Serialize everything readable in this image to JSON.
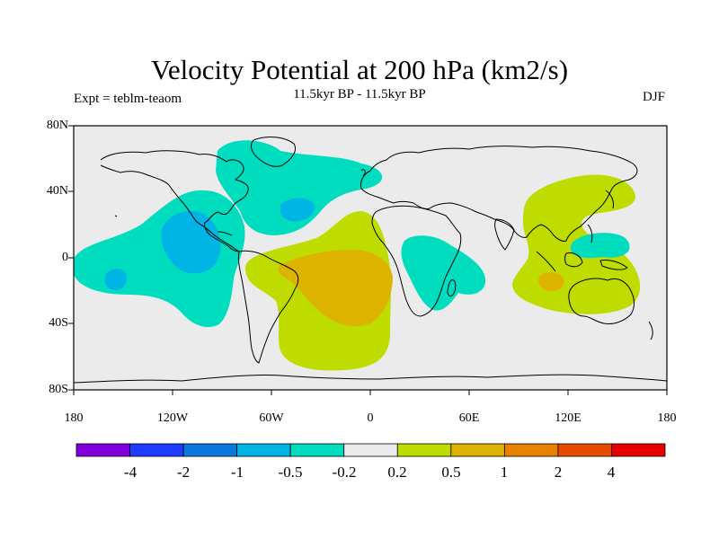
{
  "header": {
    "title": "Velocity Potential at 200 hPa (km2/s)",
    "subtitle": "11.5kyr BP - 11.5kyr BP",
    "left_label": "Expt = teblm-teaom",
    "right_label": "DJF"
  },
  "axes": {
    "y_ticks": [
      "80N",
      "40N",
      "0",
      "40S",
      "80S"
    ],
    "x_ticks": [
      "180",
      "120W",
      "60W",
      "0",
      "60E",
      "120E",
      "180"
    ]
  },
  "map": {
    "projection": "cylindrical equidistant",
    "lon_range": [
      -180,
      180
    ],
    "lat_range": [
      -80,
      80
    ],
    "background_color": "#ebebeb",
    "coastline_color": "#000000",
    "regions": [
      {
        "name": "north-atlantic-negative",
        "level": "-0.2 to -0.5"
      },
      {
        "name": "north-atlantic-core",
        "level": "-0.5 to -1"
      },
      {
        "name": "east-pacific-negative",
        "level": "-0.2 to -0.5"
      },
      {
        "name": "east-pacific-core",
        "level": "-0.5 to -1"
      },
      {
        "name": "south-pacific-core",
        "level": "-0.5 to -1"
      },
      {
        "name": "east-africa-negative",
        "level": "-0.2 to -0.5"
      },
      {
        "name": "west-pacific-negative",
        "level": "-0.2 to -0.5"
      },
      {
        "name": "south-atlantic-positive",
        "level": "0.2 to 0.5"
      },
      {
        "name": "south-america-africa-core",
        "level": "0.5 to 1"
      },
      {
        "name": "maritime-continent-positive",
        "level": "0.2 to 0.5"
      },
      {
        "name": "indonesia-core",
        "level": "0.5 to 1"
      }
    ]
  },
  "colorbar": {
    "colors": [
      "#8200dc",
      "#1e3cff",
      "#0a78dc",
      "#00b4e6",
      "#00dcbe",
      "#ebebeb",
      "#bedc00",
      "#dcb400",
      "#e68200",
      "#e64b00",
      "#e60000"
    ],
    "labels": [
      "-4",
      "-2",
      "-1",
      "-0.5",
      "-0.2",
      "0.2",
      "0.5",
      "1",
      "2",
      "4"
    ]
  }
}
